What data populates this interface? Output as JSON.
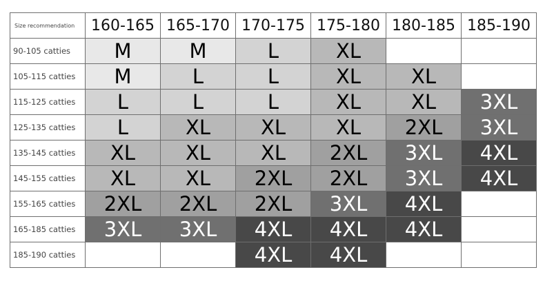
{
  "table": {
    "corner_label": "Size recommendation",
    "columns": [
      "160-165",
      "165-170",
      "170-175",
      "175-180",
      "180-185",
      "185-190"
    ],
    "rows": [
      {
        "label": "90-105 catties",
        "cells": [
          "M",
          "M",
          "L",
          "XL",
          "",
          ""
        ]
      },
      {
        "label": "105-115 catties",
        "cells": [
          "M",
          "L",
          "L",
          "XL",
          "XL",
          ""
        ]
      },
      {
        "label": "115-125 catties",
        "cells": [
          "L",
          "L",
          "L",
          "XL",
          "XL",
          "3XL"
        ]
      },
      {
        "label": "125-135 catties",
        "cells": [
          "L",
          "XL",
          "XL",
          "XL",
          "2XL",
          "3XL"
        ]
      },
      {
        "label": "135-145 catties",
        "cells": [
          "XL",
          "XL",
          "XL",
          "2XL",
          "3XL",
          "4XL"
        ]
      },
      {
        "label": "145-155 catties",
        "cells": [
          "XL",
          "XL",
          "2XL",
          "2XL",
          "3XL",
          "4XL"
        ]
      },
      {
        "label": "155-165 catties",
        "cells": [
          "2XL",
          "2XL",
          "2XL",
          "3XL",
          "4XL",
          ""
        ]
      },
      {
        "label": "165-185 catties",
        "cells": [
          "3XL",
          "3XL",
          "4XL",
          "4XL",
          "4XL",
          ""
        ]
      },
      {
        "label": "185-190 catties",
        "cells": [
          "",
          "",
          "4XL",
          "4XL",
          "",
          ""
        ]
      }
    ]
  },
  "size_colors": {
    "M": {
      "bg": "#e8e8e8",
      "fg": "#000000"
    },
    "L": {
      "bg": "#d3d3d3",
      "fg": "#000000"
    },
    "XL": {
      "bg": "#b8b8b8",
      "fg": "#000000"
    },
    "2XL": {
      "bg": "#a0a0a0",
      "fg": "#000000"
    },
    "3XL": {
      "bg": "#707070",
      "fg": "#ffffff"
    },
    "4XL": {
      "bg": "#484848",
      "fg": "#ffffff"
    },
    "": {
      "bg": "#ffffff",
      "fg": "#000000"
    }
  }
}
